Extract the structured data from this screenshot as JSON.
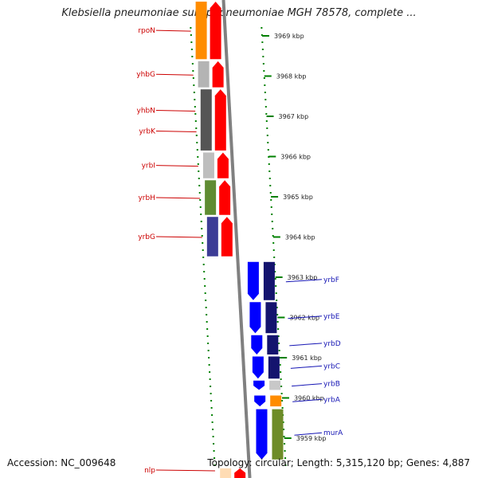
{
  "map": {
    "title": "Klebsiella pneumoniae subsp. pneumoniae MGH 78578, complete ...",
    "accession": "Accession: NC_009648",
    "info": "Topology: circular; Length: 5,315,120 bp; Genes: 4,887"
  },
  "ticks": [
    {
      "kbp": 3969,
      "label": "3969 kbp"
    },
    {
      "kbp": 3968,
      "label": "3968 kbp"
    },
    {
      "kbp": 3967,
      "label": "3967 kbp"
    },
    {
      "kbp": 3966,
      "label": "3966 kbp"
    },
    {
      "kbp": 3965,
      "label": "3965 kbp"
    },
    {
      "kbp": 3964,
      "label": "3964 kbp"
    },
    {
      "kbp": 3963,
      "label": "3963 kbp"
    },
    {
      "kbp": 3962,
      "label": "3962 kbp"
    },
    {
      "kbp": 3961,
      "label": "3961 kbp"
    },
    {
      "kbp": 3960,
      "label": "3960 kbp"
    },
    {
      "kbp": 3959,
      "label": "3959 kbp"
    }
  ],
  "genes": [
    {
      "name": "rpoN",
      "strand": "reverse",
      "start_kbp": 3968.42,
      "end_kbp": 3969.85,
      "cog_color": "#ff8c00",
      "label_color": "#cc0000"
    },
    {
      "name": "yhbG",
      "strand": "reverse",
      "start_kbp": 3967.72,
      "end_kbp": 3968.37,
      "cog_color": "#b4b4b4",
      "label_color": "#cc0000"
    },
    {
      "name": "yhbN",
      "strand": "reverse",
      "start_kbp": 3966.15,
      "end_kbp": 3967.67,
      "cog_color": "#555555",
      "label_color": "#cc0000"
    },
    {
      "name": "yrbK",
      "strand": "reverse",
      "start_kbp": 3966.15,
      "end_kbp": 3967.67,
      "cog_color": "#555555",
      "label_color": "#cc0000"
    },
    {
      "name": "yrbI",
      "strand": "reverse",
      "start_kbp": 3965.46,
      "end_kbp": 3966.1,
      "cog_color": "#bebebe",
      "label_color": "#cc0000"
    },
    {
      "name": "yrbH",
      "strand": "reverse",
      "start_kbp": 3964.55,
      "end_kbp": 3965.41,
      "cog_color": "#5f8c32",
      "label_color": "#cc0000"
    },
    {
      "name": "yrbG",
      "strand": "reverse",
      "start_kbp": 3963.52,
      "end_kbp": 3964.5,
      "cog_color": "#3c3c96",
      "label_color": "#cc0000"
    },
    {
      "name": "yrbF",
      "strand": "forward",
      "start_kbp": 3962.43,
      "end_kbp": 3963.38,
      "cog_color": "#14146e",
      "label_color": "#1414b4"
    },
    {
      "name": "yrbE",
      "strand": "forward",
      "start_kbp": 3961.61,
      "end_kbp": 3962.38,
      "cog_color": "#14146e",
      "label_color": "#1414b4"
    },
    {
      "name": "yrbD",
      "strand": "forward",
      "start_kbp": 3961.08,
      "end_kbp": 3961.56,
      "cog_color": "#14146e",
      "label_color": "#1414b4"
    },
    {
      "name": "yrbC",
      "strand": "forward",
      "start_kbp": 3960.48,
      "end_kbp": 3961.03,
      "cog_color": "#14146e",
      "label_color": "#1414b4"
    },
    {
      "name": "yrbB",
      "strand": "forward",
      "start_kbp": 3960.2,
      "end_kbp": 3960.43,
      "cog_color": "#c8c8c8",
      "label_color": "#1414b4"
    },
    {
      "name": "yrbA",
      "strand": "forward",
      "start_kbp": 3959.79,
      "end_kbp": 3960.06,
      "cog_color": "#ff8c00",
      "label_color": "#1414b4"
    },
    {
      "name": "murA",
      "strand": "forward",
      "start_kbp": 3958.47,
      "end_kbp": 3959.72,
      "cog_color": "#6e8c28",
      "label_color": "#1414b4"
    },
    {
      "name": "nlp",
      "strand": "reverse",
      "start_kbp": 3958.0,
      "end_kbp": 3958.25,
      "cog_color": "#ffdcb4",
      "label_color": "#cc0000"
    }
  ],
  "colors": {
    "reverse_strand": "#ff0000",
    "forward_strand": "#0000ff",
    "backbone": "#808080",
    "tick_mark": "#008000"
  }
}
